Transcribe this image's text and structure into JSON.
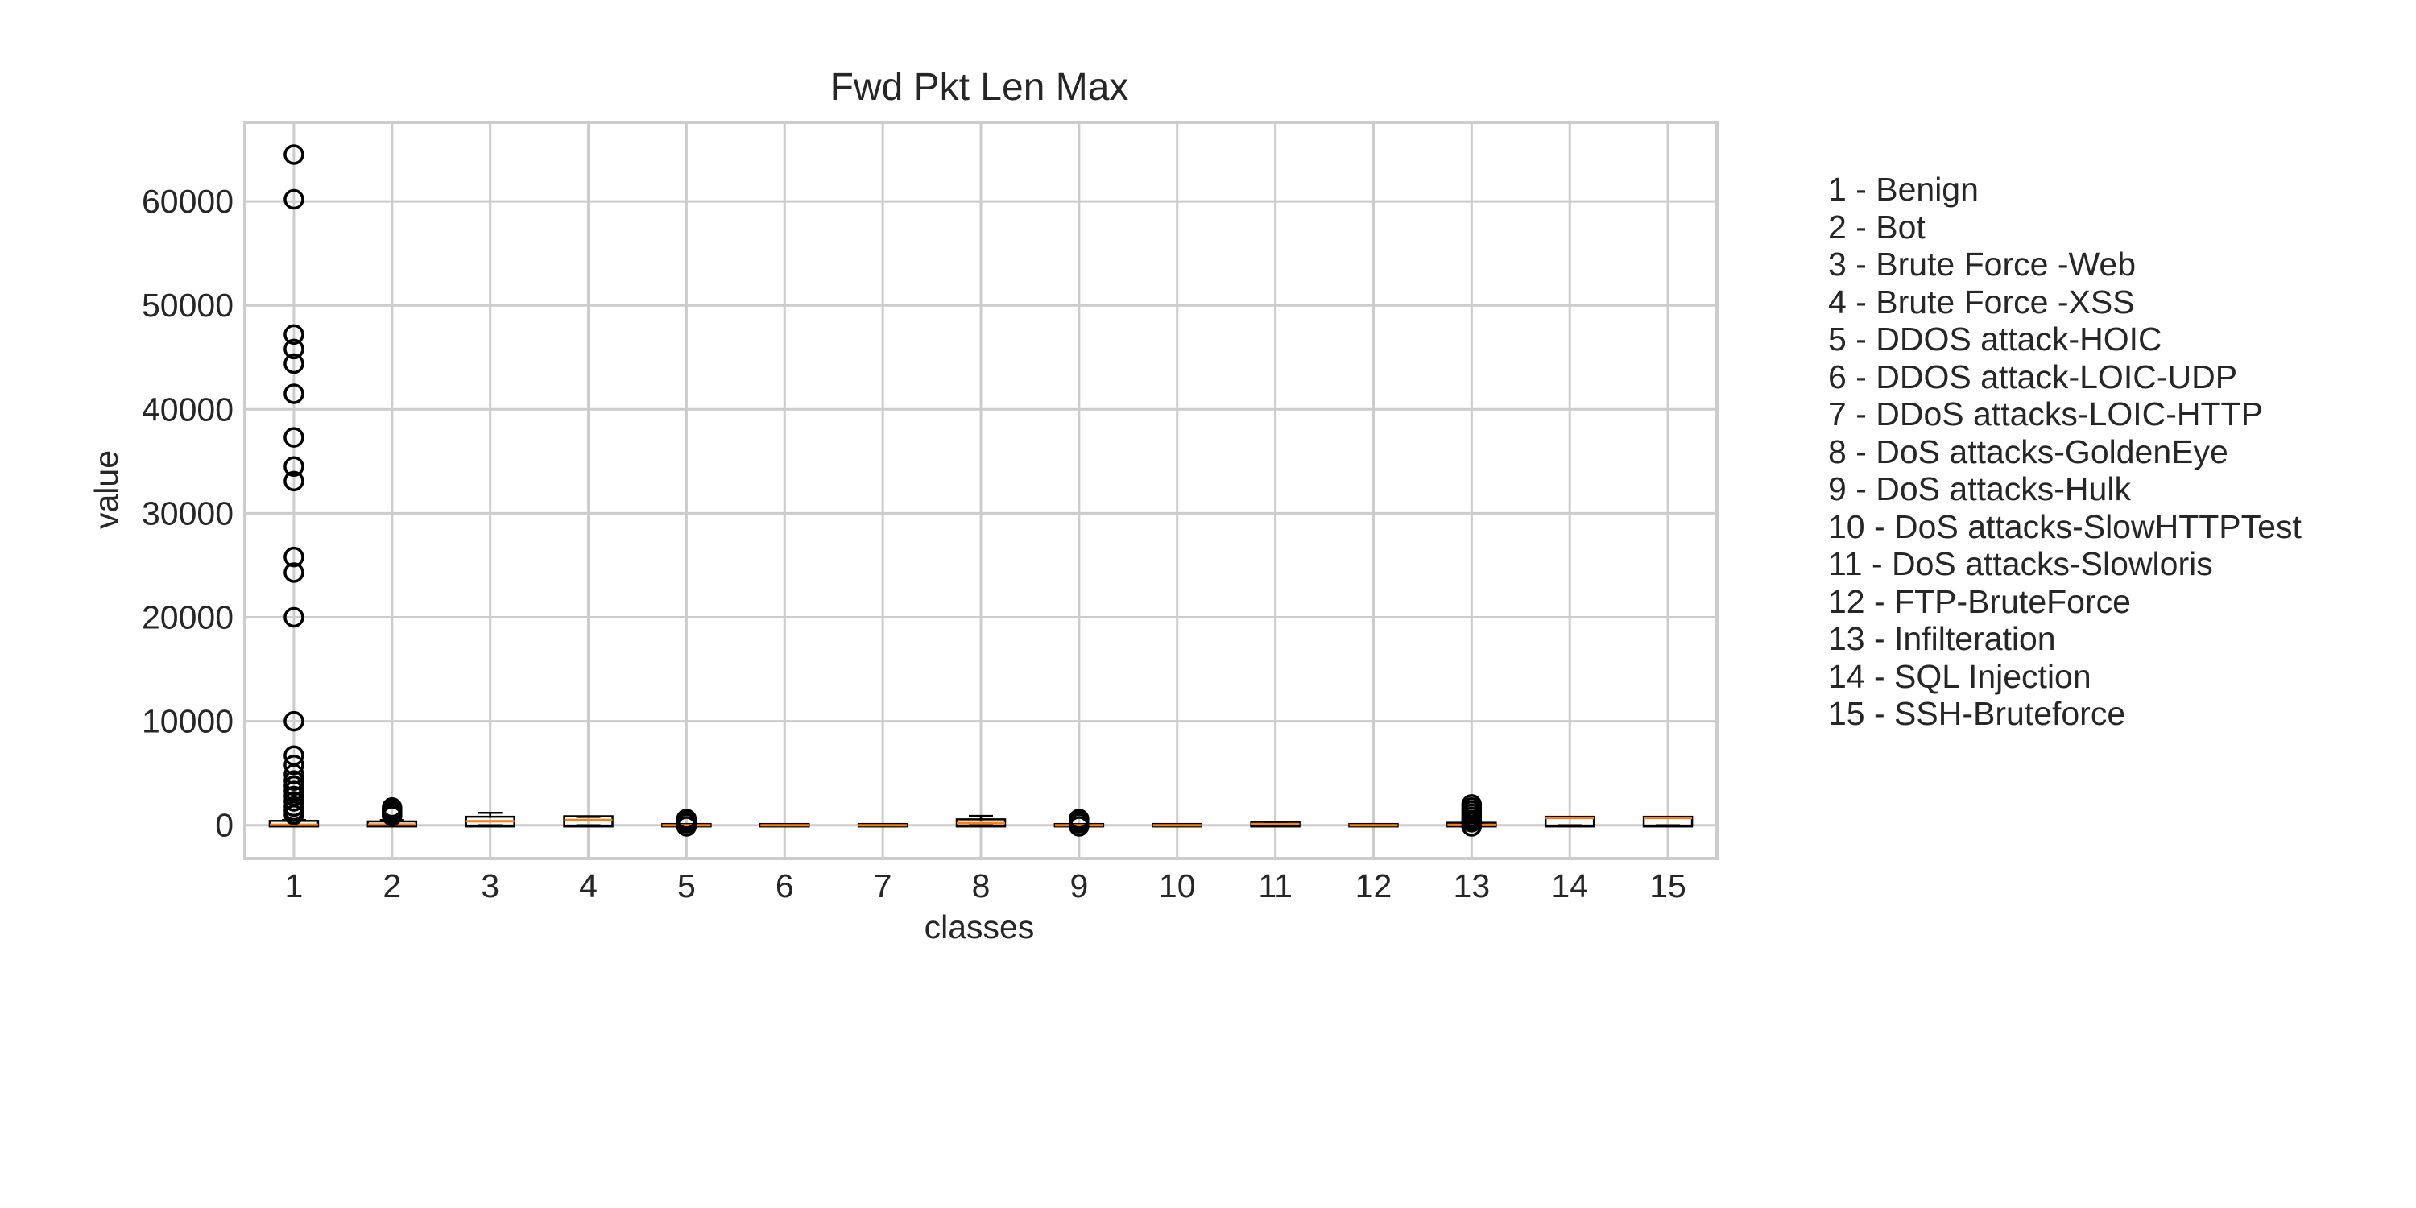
{
  "chart_data": {
    "type": "box",
    "title": "Fwd Pkt Len Max",
    "xlabel": "classes",
    "ylabel": "value",
    "ylim": [
      -3200,
      67600
    ],
    "yticks": [
      0,
      10000,
      20000,
      30000,
      40000,
      50000,
      60000
    ],
    "ytick_labels": [
      "0",
      "10000",
      "20000",
      "30000",
      "40000",
      "50000",
      "60000"
    ],
    "grid": true,
    "colors": {
      "median": "#ff7f0e",
      "box": "#000000",
      "grid": "#cccccc",
      "frame": "#cccccc"
    },
    "categories": [
      "1",
      "2",
      "3",
      "4",
      "5",
      "6",
      "7",
      "8",
      "9",
      "10",
      "11",
      "12",
      "13",
      "14",
      "15"
    ],
    "boxes": [
      {
        "category": "1",
        "q1": 0,
        "median": 40,
        "q3": 300,
        "whisker_low": 0,
        "whisker_high": 500,
        "fliers": [
          64500,
          60200,
          47200,
          45800,
          44400,
          41500,
          37300,
          34500,
          33100,
          25800,
          24300,
          20000,
          10000,
          6700,
          5800,
          4900,
          4300,
          3800,
          3300,
          2800,
          2300,
          1800,
          1400,
          1000
        ]
      },
      {
        "category": "2",
        "q1": 0,
        "median": 60,
        "q3": 250,
        "whisker_low": 0,
        "whisker_high": 500,
        "fliers": [
          1700,
          1500,
          1300,
          1100,
          900
        ]
      },
      {
        "category": "3",
        "q1": 0,
        "median": 380,
        "q3": 700,
        "whisker_low": 0,
        "whisker_high": 1200,
        "fliers": []
      },
      {
        "category": "4",
        "q1": 0,
        "median": 500,
        "q3": 750,
        "whisker_low": 0,
        "whisker_high": 800,
        "fliers": []
      },
      {
        "category": "5",
        "q1": 0,
        "median": 0,
        "q3": 0,
        "whisker_low": 0,
        "whisker_high": 0,
        "fliers": [
          600,
          400,
          200,
          -100
        ]
      },
      {
        "category": "6",
        "q1": 0,
        "median": 0,
        "q3": 0,
        "whisker_low": 0,
        "whisker_high": 0,
        "fliers": []
      },
      {
        "category": "7",
        "q1": 0,
        "median": 0,
        "q3": 0,
        "whisker_low": 0,
        "whisker_high": 0,
        "fliers": []
      },
      {
        "category": "8",
        "q1": 0,
        "median": 200,
        "q3": 450,
        "whisker_low": 0,
        "whisker_high": 900,
        "fliers": []
      },
      {
        "category": "9",
        "q1": 0,
        "median": 0,
        "q3": 0,
        "whisker_low": 0,
        "whisker_high": 0,
        "fliers": [
          600,
          400,
          200,
          -100
        ]
      },
      {
        "category": "10",
        "q1": 0,
        "median": 0,
        "q3": 0,
        "whisker_low": 0,
        "whisker_high": 0,
        "fliers": []
      },
      {
        "category": "11",
        "q1": 0,
        "median": 100,
        "q3": 200,
        "whisker_low": 0,
        "whisker_high": 200,
        "fliers": []
      },
      {
        "category": "12",
        "q1": 0,
        "median": 0,
        "q3": 0,
        "whisker_low": 0,
        "whisker_high": 0,
        "fliers": []
      },
      {
        "category": "13",
        "q1": 0,
        "median": 20,
        "q3": 120,
        "whisker_low": 0,
        "whisker_high": 200,
        "fliers": [
          2000,
          1700,
          1400,
          1100,
          800,
          500,
          300,
          -100
        ]
      },
      {
        "category": "14",
        "q1": 0,
        "median": 700,
        "q3": 700,
        "whisker_low": 0,
        "whisker_high": 800,
        "fliers": []
      },
      {
        "category": "15",
        "q1": 0,
        "median": 700,
        "q3": 700,
        "whisker_low": 0,
        "whisker_high": 700,
        "fliers": []
      }
    ]
  },
  "legend": {
    "items": [
      "1 - Benign",
      "2 - Bot",
      "3 - Brute Force -Web",
      "4 - Brute Force -XSS",
      "5 - DDOS attack-HOIC",
      "6 - DDOS attack-LOIC-UDP",
      "7 - DDoS attacks-LOIC-HTTP",
      "8 - DoS attacks-GoldenEye",
      "9 - DoS attacks-Hulk",
      "10 - DoS attacks-SlowHTTPTest",
      "11 - DoS attacks-Slowloris",
      "12 - FTP-BruteForce",
      "13 - Infilteration",
      "14 - SQL Injection",
      "15 - SSH-Bruteforce"
    ]
  }
}
